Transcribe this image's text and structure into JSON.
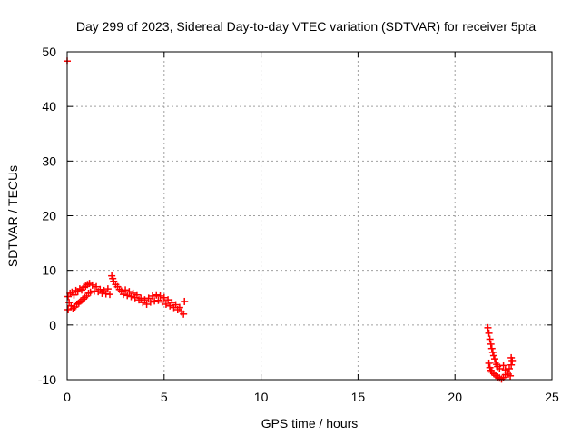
{
  "chart_data": {
    "type": "scatter",
    "title": "Day 299 of 2023, Sidereal Day-to-day VTEC variation (SDTVAR) for receiver 5pta",
    "xlabel": "GPS time / hours",
    "ylabel": "SDTVAR / TECUs",
    "xlim": [
      0,
      25
    ],
    "ylim": [
      -10,
      50
    ],
    "xticks": [
      0,
      5,
      10,
      15,
      20,
      25
    ],
    "yticks": [
      -10,
      0,
      10,
      20,
      30,
      40,
      50
    ],
    "grid": true,
    "legend": "none",
    "marker": "plus",
    "colors": {
      "series": "#ff0000",
      "axis": "#000000",
      "grid": "#a0a0a0"
    },
    "series": [
      {
        "name": "SDTVAR",
        "points": [
          [
            0.0,
            48.3
          ],
          [
            0.05,
            5.2
          ],
          [
            0.05,
            2.8
          ],
          [
            0.1,
            4.1
          ],
          [
            0.15,
            5.8
          ],
          [
            0.2,
            3.5
          ],
          [
            0.25,
            6.0
          ],
          [
            0.3,
            3.0
          ],
          [
            0.35,
            5.5
          ],
          [
            0.4,
            3.3
          ],
          [
            0.45,
            6.3
          ],
          [
            0.5,
            3.8
          ],
          [
            0.55,
            6.1
          ],
          [
            0.6,
            4.0
          ],
          [
            0.65,
            6.6
          ],
          [
            0.7,
            4.4
          ],
          [
            0.75,
            6.4
          ],
          [
            0.8,
            4.7
          ],
          [
            0.85,
            6.9
          ],
          [
            0.9,
            5.0
          ],
          [
            0.95,
            7.1
          ],
          [
            1.0,
            5.3
          ],
          [
            1.05,
            7.4
          ],
          [
            1.1,
            5.8
          ],
          [
            1.15,
            7.6
          ],
          [
            1.2,
            6.0
          ],
          [
            1.3,
            7.3
          ],
          [
            1.4,
            6.2
          ],
          [
            1.5,
            7.0
          ],
          [
            1.6,
            6.1
          ],
          [
            1.7,
            6.5
          ],
          [
            1.8,
            5.8
          ],
          [
            1.9,
            6.3
          ],
          [
            2.0,
            5.7
          ],
          [
            2.1,
            6.6
          ],
          [
            2.2,
            5.6
          ],
          [
            2.3,
            9.0
          ],
          [
            2.35,
            8.5
          ],
          [
            2.4,
            8.0
          ],
          [
            2.5,
            7.4
          ],
          [
            2.6,
            7.0
          ],
          [
            2.7,
            6.5
          ],
          [
            2.8,
            6.2
          ],
          [
            2.9,
            5.6
          ],
          [
            3.0,
            6.4
          ],
          [
            3.1,
            5.4
          ],
          [
            3.2,
            6.1
          ],
          [
            3.3,
            5.2
          ],
          [
            3.4,
            5.8
          ],
          [
            3.5,
            5.0
          ],
          [
            3.6,
            5.5
          ],
          [
            3.7,
            4.6
          ],
          [
            3.8,
            4.9
          ],
          [
            3.9,
            4.1
          ],
          [
            4.0,
            4.6
          ],
          [
            4.1,
            3.8
          ],
          [
            4.2,
            4.9
          ],
          [
            4.3,
            4.2
          ],
          [
            4.4,
            5.3
          ],
          [
            4.5,
            4.4
          ],
          [
            4.6,
            5.5
          ],
          [
            4.7,
            4.5
          ],
          [
            4.8,
            5.3
          ],
          [
            4.9,
            4.2
          ],
          [
            5.0,
            5.0
          ],
          [
            5.1,
            3.8
          ],
          [
            5.2,
            4.6
          ],
          [
            5.3,
            3.5
          ],
          [
            5.4,
            4.1
          ],
          [
            5.5,
            3.2
          ],
          [
            5.6,
            3.7
          ],
          [
            5.7,
            2.8
          ],
          [
            5.8,
            3.2
          ],
          [
            5.9,
            2.4
          ],
          [
            6.0,
            2.0
          ],
          [
            6.05,
            4.3
          ],
          [
            21.7,
            -0.5
          ],
          [
            21.75,
            -1.5
          ],
          [
            21.8,
            -2.6
          ],
          [
            21.85,
            -3.5
          ],
          [
            21.9,
            -4.3
          ],
          [
            21.95,
            -5.0
          ],
          [
            22.0,
            -5.6
          ],
          [
            22.05,
            -6.2
          ],
          [
            22.1,
            -6.8
          ],
          [
            22.15,
            -7.2
          ],
          [
            22.2,
            -7.6
          ],
          [
            22.3,
            -8.0
          ],
          [
            21.75,
            -7.0
          ],
          [
            21.8,
            -7.8
          ],
          [
            21.85,
            -8.3
          ],
          [
            21.9,
            -8.6
          ],
          [
            22.0,
            -8.9
          ],
          [
            22.1,
            -9.2
          ],
          [
            22.2,
            -9.5
          ],
          [
            22.3,
            -9.7
          ],
          [
            22.4,
            -9.9
          ],
          [
            22.5,
            -9.6
          ],
          [
            22.6,
            -9.1
          ],
          [
            22.7,
            -8.6
          ],
          [
            22.8,
            -8.0
          ],
          [
            22.9,
            -7.3
          ],
          [
            22.95,
            -6.5
          ],
          [
            22.9,
            -6.0
          ],
          [
            22.5,
            -7.4
          ],
          [
            22.6,
            -8.2
          ],
          [
            22.75,
            -9.0
          ],
          [
            22.85,
            -9.3
          ]
        ]
      }
    ]
  }
}
